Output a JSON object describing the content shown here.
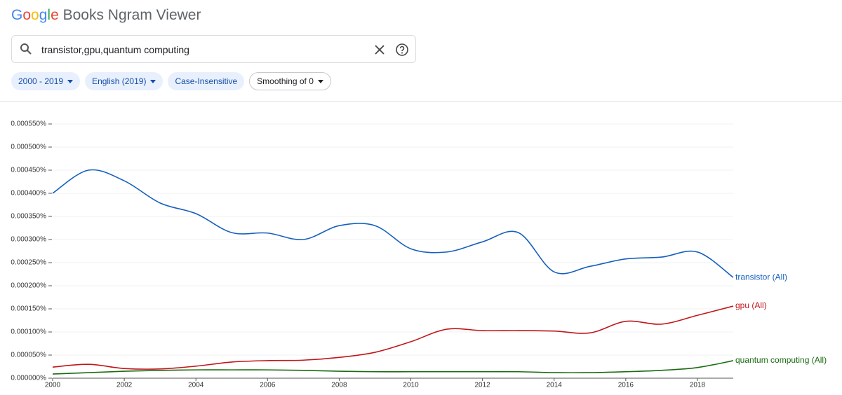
{
  "header": {
    "logo_letters": [
      "G",
      "o",
      "o",
      "g",
      "l",
      "e"
    ],
    "product": "Books Ngram Viewer",
    "query": "transistor,gpu,quantum computing",
    "chips": [
      "2000 - 2019",
      "English (2019)",
      "Case-Insensitive",
      "Smoothing of 0"
    ]
  },
  "chart_data": {
    "type": "line",
    "x": [
      2000,
      2001,
      2002,
      2003,
      2004,
      2005,
      2006,
      2007,
      2008,
      2009,
      2010,
      2011,
      2012,
      2013,
      2014,
      2015,
      2016,
      2017,
      2018,
      2019
    ],
    "series": [
      {
        "name": "transistor (All)",
        "color": "#1560bd",
        "values": [
          0.0004,
          0.00045,
          0.000427,
          0.000379,
          0.000356,
          0.000315,
          0.000314,
          0.0003,
          0.00033,
          0.00033,
          0.00028,
          0.000273,
          0.000295,
          0.000315,
          0.00023,
          0.000242,
          0.000258,
          0.000262,
          0.000273,
          0.000218
        ]
      },
      {
        "name": "gpu (All)",
        "color": "#c0161c",
        "values": [
          2.4e-05,
          3e-05,
          2.1e-05,
          2e-05,
          2.6e-05,
          3.5e-05,
          3.8e-05,
          3.9e-05,
          4.5e-05,
          5.6e-05,
          7.9e-05,
          0.000106,
          0.000103,
          0.000103,
          0.000102,
          9.8e-05,
          0.000123,
          0.000117,
          0.000136,
          0.000156
        ]
      },
      {
        "name": "quantum computing (All)",
        "color": "#1b6b12",
        "values": [
          9e-06,
          1.2e-05,
          1.5e-05,
          1.7e-05,
          1.8e-05,
          1.8e-05,
          1.8e-05,
          1.7e-05,
          1.5e-05,
          1.4e-05,
          1.4e-05,
          1.4e-05,
          1.4e-05,
          1.4e-05,
          1.2e-05,
          1.2e-05,
          1.4e-05,
          1.7e-05,
          2.3e-05,
          3.8e-05
        ]
      }
    ],
    "xlim": [
      2000,
      2019
    ],
    "xticks": [
      2000,
      2002,
      2004,
      2006,
      2008,
      2010,
      2012,
      2014,
      2016,
      2018
    ],
    "ylim": [
      0,
      0.00055
    ],
    "yticks": [
      {
        "value": 0,
        "label": "0.000000%"
      },
      {
        "value": 5e-05,
        "label": "0.000050%"
      },
      {
        "value": 0.0001,
        "label": "0.000100%"
      },
      {
        "value": 0.00015,
        "label": "0.000150%"
      },
      {
        "value": 0.0002,
        "label": "0.000200%"
      },
      {
        "value": 0.00025,
        "label": "0.000250%"
      },
      {
        "value": 0.0003,
        "label": "0.000300%"
      },
      {
        "value": 0.00035,
        "label": "0.000350%"
      },
      {
        "value": 0.0004,
        "label": "0.000400%"
      },
      {
        "value": 0.00045,
        "label": "0.000450%"
      },
      {
        "value": 0.0005,
        "label": "0.000500%"
      },
      {
        "value": 0.00055,
        "label": "0.000550%"
      }
    ],
    "grid": true
  }
}
